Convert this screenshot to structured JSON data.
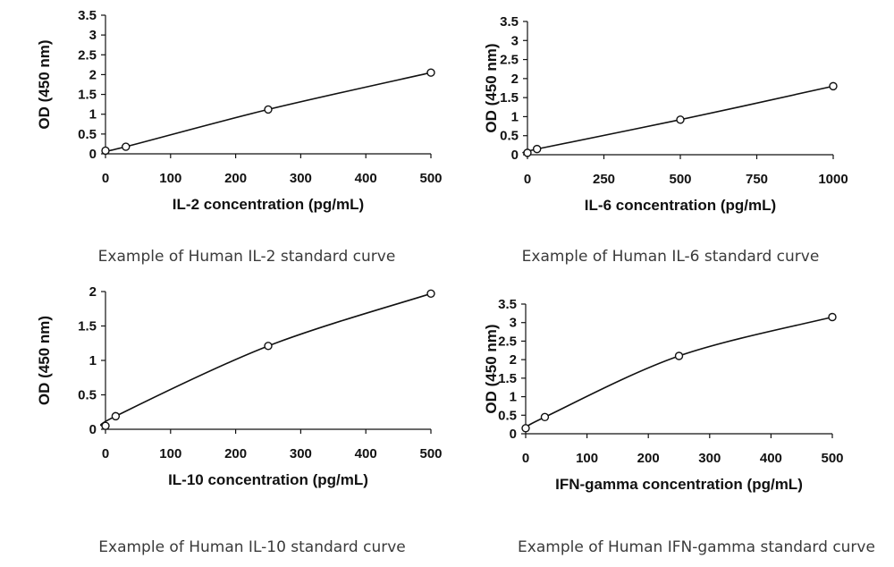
{
  "chart_data": [
    {
      "type": "line",
      "xlabel": "IL-2 concentration (pg/mL)",
      "ylabel": "OD (450 nm)",
      "xlim": [
        0,
        500
      ],
      "ylim": [
        0,
        3.5
      ],
      "xticks": [
        0,
        100,
        200,
        300,
        400,
        500
      ],
      "yticks": [
        0,
        0.5,
        1,
        1.5,
        2,
        2.5,
        3,
        3.5
      ],
      "x": [
        0,
        31.25,
        250,
        500
      ],
      "y": [
        0.08,
        0.18,
        1.12,
        2.05
      ],
      "grid": false,
      "caption": "Example of Human IL-2 standard curve"
    },
    {
      "type": "line",
      "xlabel": "IL-6 concentration (pg/mL)",
      "ylabel": "OD (450 nm)",
      "xlim": [
        0,
        1000
      ],
      "ylim": [
        0,
        3.5
      ],
      "xticks": [
        0,
        250,
        500,
        750,
        1000
      ],
      "yticks": [
        0,
        0.5,
        1,
        1.5,
        2,
        2.5,
        3,
        3.5
      ],
      "x": [
        0,
        31.25,
        500,
        1000
      ],
      "y": [
        0.05,
        0.15,
        0.92,
        1.8
      ],
      "grid": false,
      "caption": "Example of Human IL-6 standard curve"
    },
    {
      "type": "line",
      "xlabel": "IL-10 concentration (pg/mL)",
      "ylabel": "OD (450 nm)",
      "xlim": [
        0,
        500
      ],
      "ylim": [
        0,
        2
      ],
      "xticks": [
        0,
        100,
        200,
        300,
        400,
        500
      ],
      "yticks": [
        0,
        0.5,
        1,
        1.5,
        2
      ],
      "x": [
        0,
        15.6,
        250,
        500
      ],
      "y": [
        0.05,
        0.19,
        1.21,
        1.97
      ],
      "grid": false,
      "caption": "Example of Human IL-10 standard curve"
    },
    {
      "type": "line",
      "xlabel": "IFN-gamma concentration (pg/mL)",
      "ylabel": "OD (450 nm)",
      "xlim": [
        0,
        500
      ],
      "ylim": [
        0,
        3.5
      ],
      "xticks": [
        0,
        100,
        200,
        300,
        400,
        500
      ],
      "yticks": [
        0,
        0.5,
        1,
        1.5,
        2,
        2.5,
        3,
        3.5
      ],
      "x": [
        0,
        31.25,
        250,
        500
      ],
      "y": [
        0.15,
        0.45,
        2.1,
        3.15
      ],
      "grid": false,
      "caption": "Example of Human IFN-gamma standard curve"
    }
  ]
}
